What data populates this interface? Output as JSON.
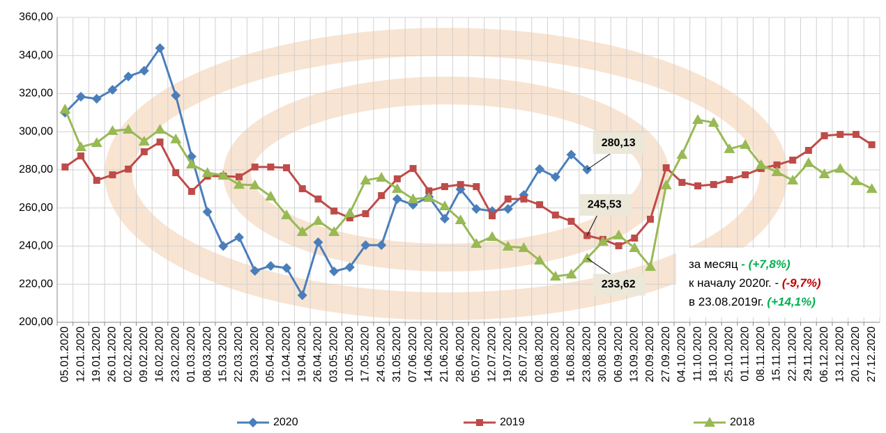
{
  "chart_data": {
    "type": "line",
    "categories": [
      "05.01.2020",
      "12.01.2020",
      "19.01.2020",
      "26.01.2020",
      "02.02.2020",
      "09.02.2020",
      "16.02.2020",
      "23.02.2020",
      "01.03.2020",
      "08.03.2020",
      "15.03.2020",
      "22.03.2020",
      "29.03.2020",
      "05.04.2020",
      "12.04.2020",
      "19.04.2020",
      "26.04.2020",
      "03.05.2020",
      "10.05.2020",
      "17.05.2020",
      "24.05.2020",
      "31.05.2020",
      "07.06.2020",
      "14.06.2020",
      "21.06.2020",
      "28.06.2020",
      "05.07.2020",
      "12.07.2020",
      "19.07.2020",
      "26.07.2020",
      "02.08.2020",
      "09.08.2020",
      "16.08.2020",
      "23.08.2020",
      "30.08.2020",
      "06.09.2020",
      "13.09.2020",
      "20.09.2020",
      "27.09.2020",
      "04.10.2020",
      "11.10.2020",
      "18.10.2020",
      "25.10.2020",
      "01.11.2020",
      "08.11.2020",
      "15.11.2020",
      "22.11.2020",
      "29.11.2020",
      "06.12.2020",
      "13.12.2020",
      "20.12.2020",
      "27.12.2020"
    ],
    "series": [
      {
        "name": "2020",
        "color": "#4a7ebb",
        "marker": "diamond",
        "values": [
          310,
          318.4,
          317.3,
          322,
          329,
          332,
          343.9,
          319,
          287,
          258,
          240,
          244.6,
          227,
          229.6,
          228.5,
          214.2,
          242,
          226.7,
          228.9,
          240.5,
          240.5,
          264.7,
          261.7,
          265.8,
          254.4,
          269.8,
          259.5,
          258.4,
          259.5,
          266.8,
          280.4,
          276.3,
          288,
          280.13,
          null,
          null,
          null,
          null,
          null,
          null,
          null,
          null,
          null,
          null,
          null,
          null,
          null,
          null,
          null,
          null,
          null,
          null
        ],
        "value_labels": [
          null,
          null,
          null,
          null,
          null,
          null,
          null,
          null,
          null,
          null,
          null,
          null,
          null,
          null,
          null,
          null,
          null,
          null,
          null,
          null,
          null,
          null,
          null,
          null,
          null,
          null,
          null,
          null,
          null,
          null,
          null,
          null,
          null,
          "280,13",
          null,
          null,
          null,
          null,
          null,
          null,
          null,
          null,
          null,
          null,
          null,
          null,
          null,
          null,
          null,
          null,
          null,
          null
        ]
      },
      {
        "name": "2019",
        "color": "#be4b48",
        "marker": "square",
        "values": [
          281.5,
          287.3,
          274.5,
          277.4,
          280.4,
          289.5,
          294.6,
          278.5,
          268.7,
          276.7,
          276.7,
          276.3,
          281.5,
          281.5,
          281.1,
          270.1,
          264.7,
          258.4,
          254.8,
          257,
          266.5,
          275.3,
          280.7,
          269,
          271.2,
          272.3,
          271.2,
          255.9,
          264.7,
          264.7,
          261.7,
          256.3,
          253,
          245.53,
          243.5,
          240.2,
          244.2,
          254.1,
          281.1,
          273.4,
          271.6,
          272.3,
          274.9,
          277.4,
          280.7,
          282.6,
          285.1,
          290.2,
          297.9,
          298.6,
          298.6,
          293.2
        ],
        "value_labels": [
          null,
          null,
          null,
          null,
          null,
          null,
          null,
          null,
          null,
          null,
          null,
          null,
          null,
          null,
          null,
          null,
          null,
          null,
          null,
          null,
          null,
          null,
          null,
          null,
          null,
          null,
          null,
          null,
          null,
          null,
          null,
          null,
          null,
          "245,53",
          null,
          null,
          null,
          null,
          null,
          null,
          null,
          null,
          null,
          null,
          null,
          null,
          null,
          null,
          null,
          null,
          null,
          null
        ]
      },
      {
        "name": "2018",
        "color": "#98b954",
        "marker": "triangle",
        "values": [
          311.8,
          292,
          294.2,
          300.5,
          301.2,
          295,
          301.2,
          296.1,
          282.9,
          278.5,
          277.1,
          272.3,
          272,
          266.1,
          256.3,
          247.5,
          253.3,
          247.5,
          257.4,
          274.5,
          276,
          270.1,
          264.7,
          265.4,
          261,
          253.7,
          241.3,
          244.9,
          239.8,
          239.1,
          232.5,
          224.1,
          225.2,
          233.62,
          242.4,
          245.7,
          239.1,
          229.2,
          272,
          288,
          306.3,
          304.8,
          291,
          293.2,
          282.6,
          278.9,
          274.5,
          283.7,
          277.8,
          280.7,
          274.2,
          270.1
        ],
        "value_labels": [
          null,
          null,
          null,
          null,
          null,
          null,
          null,
          null,
          null,
          null,
          null,
          null,
          null,
          null,
          null,
          null,
          null,
          null,
          null,
          null,
          null,
          null,
          null,
          null,
          null,
          null,
          null,
          null,
          null,
          null,
          null,
          null,
          null,
          "233,62",
          null,
          null,
          null,
          null,
          null,
          null,
          null,
          null,
          null,
          null,
          null,
          null,
          null,
          null,
          null,
          null,
          null,
          null
        ]
      }
    ],
    "ylim": [
      200,
      360
    ],
    "yticks": [
      {
        "value": 200,
        "label": "200,00"
      },
      {
        "value": 220,
        "label": "220,00"
      },
      {
        "value": 240,
        "label": "240,00"
      },
      {
        "value": 260,
        "label": "260,00"
      },
      {
        "value": 280,
        "label": "280,00"
      },
      {
        "value": 300,
        "label": "300,00"
      },
      {
        "value": 320,
        "label": "320,00"
      },
      {
        "value": 340,
        "label": "340,00"
      },
      {
        "value": 360,
        "label": "360,00"
      }
    ],
    "grid": true,
    "legend": "bottom",
    "annotation": [
      [
        {
          "text": "за месяц",
          "color": "#000000"
        },
        {
          "text": " - (+7,8%)",
          "color": "#00b050"
        }
      ],
      [
        {
          "text": "к началу 2020г. - ",
          "color": "#000000"
        },
        {
          "text": "(-9,7%)",
          "color": "#c00000"
        }
      ],
      [
        {
          "text": "в 23.08.2019г. ",
          "color": "#000000"
        },
        {
          "text": "(+14,1%)",
          "color": "#00b050"
        }
      ]
    ]
  }
}
